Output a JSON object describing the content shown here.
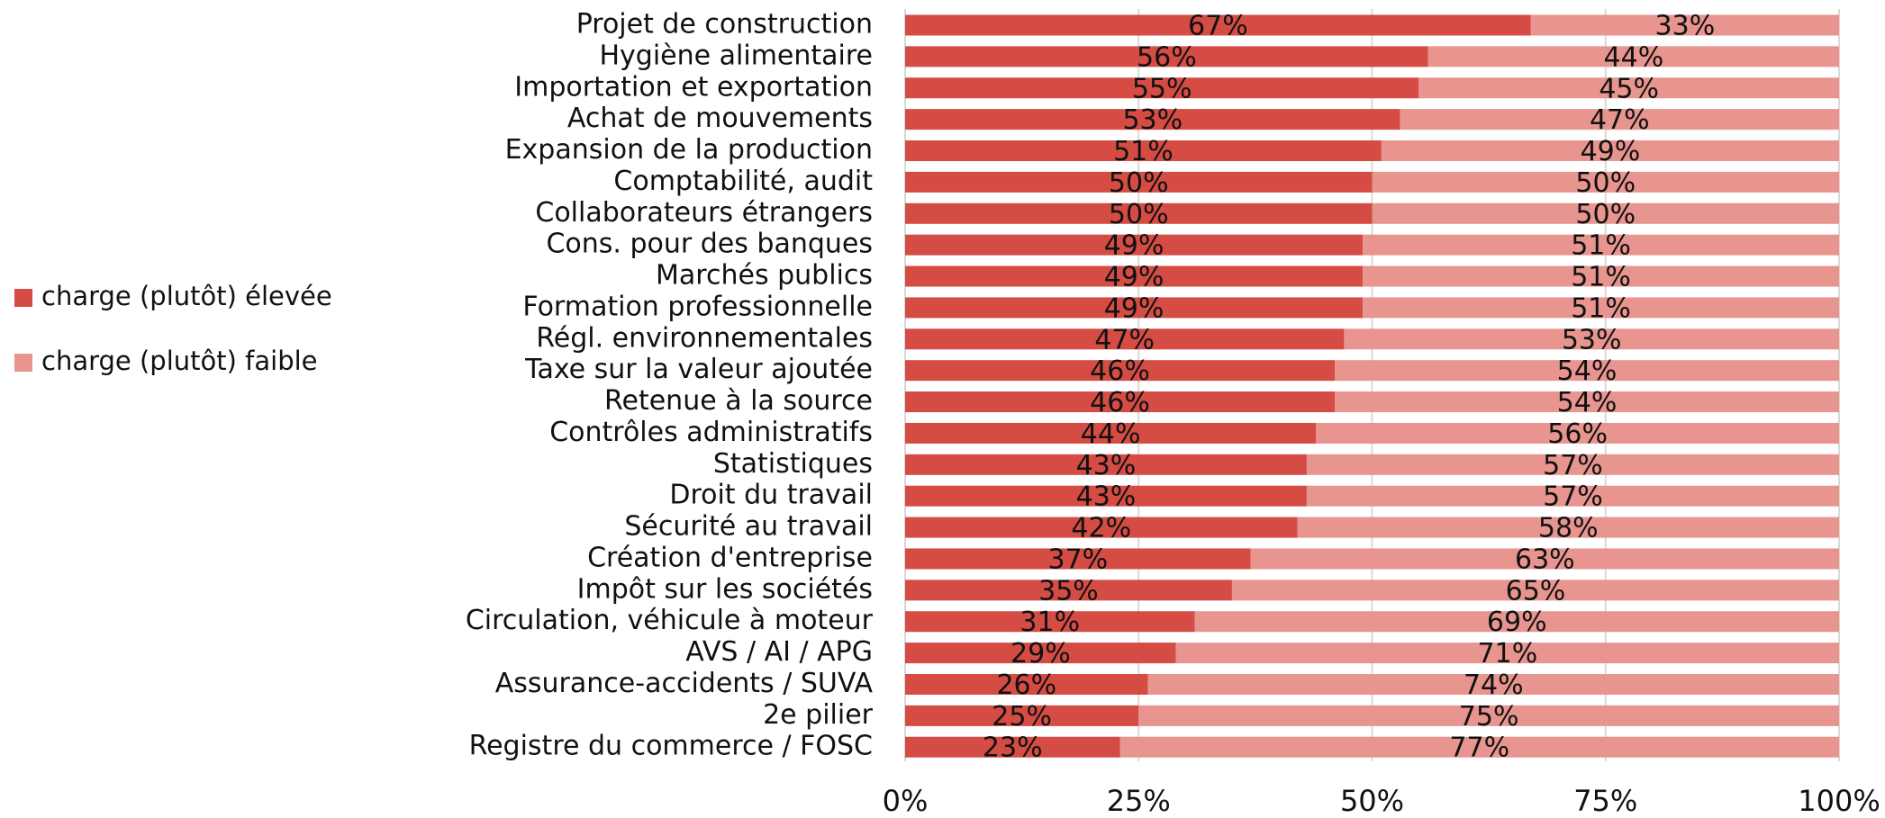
{
  "chart_data": {
    "type": "stacked_barh",
    "categories": [
      "Projet de construction",
      "Hygiène alimentaire",
      "Importation et exportation",
      "Achat de mouvements",
      "Expansion de la production",
      "Comptabilité, audit",
      "Collaborateurs étrangers",
      "Cons. pour des banques",
      "Marchés publics",
      "Formation professionnelle",
      "Régl. environnementales",
      "Taxe sur la valeur ajoutée",
      "Retenue à la source",
      "Contrôles administratifs",
      "Statistiques",
      "Droit du travail",
      "Sécurité au travail",
      "Création d'entreprise",
      "Impôt sur les sociétés",
      "Circulation, véhicule à moteur",
      "AVS / AI / APG",
      "Assurance-accidents / SUVA",
      "2e pilier",
      "Registre du commerce / FOSC"
    ],
    "series": [
      {
        "name": "charge (plutôt) élevée",
        "color": "#d44c44",
        "values": [
          67,
          56,
          55,
          53,
          51,
          50,
          50,
          49,
          49,
          49,
          47,
          46,
          46,
          44,
          43,
          43,
          42,
          37,
          35,
          31,
          29,
          26,
          25,
          23
        ],
        "value_labels": [
          "67%",
          "56%",
          "55%",
          "53%",
          "51%",
          "50%",
          "50%",
          "49%",
          "49%",
          "49%",
          "47%",
          "46%",
          "46%",
          "44%",
          "43%",
          "43%",
          "42%",
          "37%",
          "35%",
          "31%",
          "29%",
          "26%",
          "25%",
          "23%"
        ]
      },
      {
        "name": "charge (plutôt) faible",
        "color": "#e8948f",
        "values": [
          33,
          44,
          45,
          47,
          49,
          50,
          50,
          51,
          51,
          51,
          53,
          54,
          54,
          56,
          57,
          57,
          58,
          63,
          65,
          69,
          71,
          74,
          75,
          77
        ],
        "value_labels": [
          "33%",
          "44%",
          "45%",
          "47%",
          "49%",
          "50%",
          "50%",
          "51%",
          "51%",
          "51%",
          "53%",
          "54%",
          "54%",
          "56%",
          "57%",
          "57%",
          "58%",
          "63%",
          "65%",
          "69%",
          "71%",
          "74%",
          "75%",
          "77%"
        ]
      }
    ],
    "xlim": [
      0,
      100
    ],
    "xticks": [
      {
        "value": 0,
        "label": "0%"
      },
      {
        "value": 25,
        "label": "25%"
      },
      {
        "value": 50,
        "label": "50%"
      },
      {
        "value": 75,
        "label": "75%"
      },
      {
        "value": 100,
        "label": "100%"
      }
    ],
    "grid": true,
    "legend": "left"
  }
}
